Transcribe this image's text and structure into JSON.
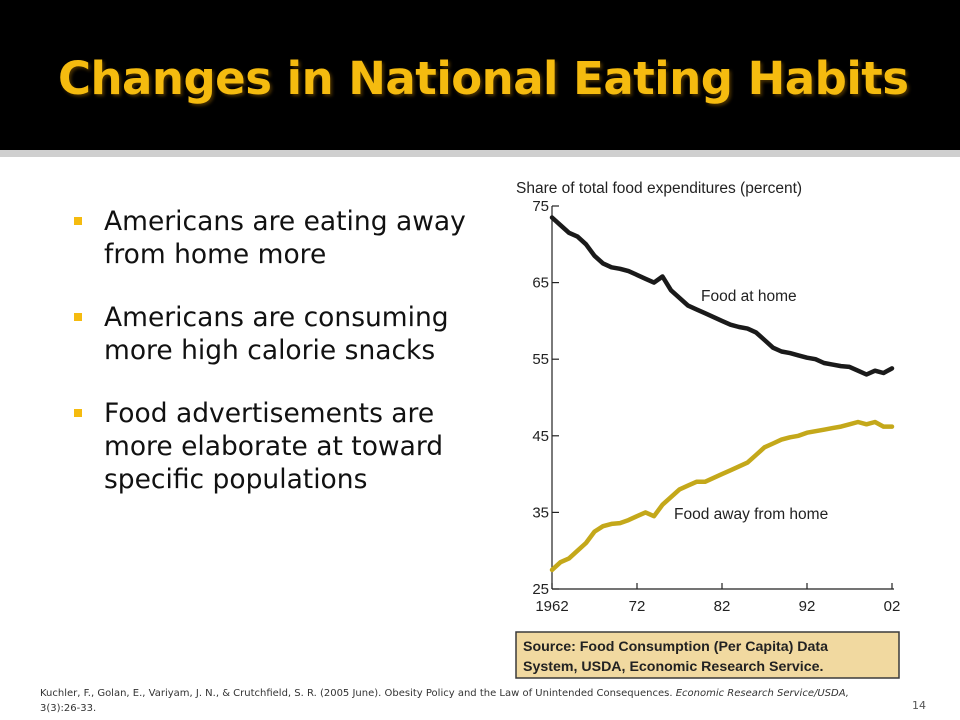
{
  "slide": {
    "title": "Changes in National Eating Habits",
    "bullets": [
      "Americans are eating away from home more",
      "Americans are consuming more high calorie snacks",
      "Food advertisements are more elaborate at toward specific populations"
    ],
    "citation_main": "Kuchler, F., Golan, E., Variyam, J. N., & Crutchfield, S. R. (2005 June). Obesity Policy and the Law of Unintended Consequences. ",
    "citation_journal": "Economic Research Service/USDA,",
    "citation_tail": " 3(3):26-33.",
    "page_number": "14"
  },
  "colors": {
    "title": "#f5bb0f",
    "bullet_marker": "#f5bb0f",
    "food_at_home": "#1a1a1a",
    "food_away": "#c4a81a",
    "source_fill": "#f1d9a0",
    "source_border": "#3a3a3a"
  },
  "chart_data": {
    "type": "line",
    "title": "Share of total food expenditures (percent)",
    "xlabel": "",
    "ylabel": "",
    "xlim": [
      1962,
      2002
    ],
    "ylim": [
      25,
      75
    ],
    "x_ticks": [
      1962,
      1972,
      1982,
      1992,
      2002
    ],
    "x_tick_labels": [
      "1962",
      "72",
      "82",
      "92",
      "02"
    ],
    "y_ticks": [
      25,
      35,
      45,
      55,
      65,
      75
    ],
    "y_tick_labels": [
      "25",
      "35",
      "45",
      "55",
      "65",
      "75"
    ],
    "grid": false,
    "x": [
      1962,
      1963,
      1964,
      1965,
      1966,
      1967,
      1968,
      1969,
      1970,
      1971,
      1972,
      1973,
      1974,
      1975,
      1976,
      1977,
      1978,
      1979,
      1980,
      1981,
      1982,
      1983,
      1984,
      1985,
      1986,
      1987,
      1988,
      1989,
      1990,
      1991,
      1992,
      1993,
      1994,
      1995,
      1996,
      1997,
      1998,
      1999,
      2000,
      2001,
      2002
    ],
    "series": [
      {
        "name": "Food at home",
        "values": [
          73.5,
          72.5,
          71.5,
          71,
          70,
          68.5,
          67.5,
          67,
          66.8,
          66.5,
          66,
          65.5,
          65,
          65.8,
          64,
          63,
          62,
          61.5,
          61,
          60.5,
          60,
          59.5,
          59.2,
          59,
          58.5,
          57.5,
          56.5,
          56,
          55.8,
          55.5,
          55.2,
          55,
          54.5,
          54.3,
          54.1,
          54,
          53.5,
          53,
          53.5,
          53.2,
          53.8
        ]
      },
      {
        "name": "Food away from home",
        "values": [
          27.5,
          28.5,
          29,
          30,
          31,
          32.5,
          33.2,
          33.5,
          33.6,
          34,
          34.5,
          35,
          34.5,
          36,
          37,
          38,
          38.5,
          39,
          39,
          39.5,
          40,
          40.5,
          41,
          41.5,
          42.5,
          43.5,
          44,
          44.5,
          44.8,
          45,
          45.4,
          45.6,
          45.8,
          46,
          46.2,
          46.5,
          46.8,
          46.5,
          46.8,
          46.2,
          46.2
        ]
      }
    ],
    "annotations": [
      "Food at home",
      "Food away from home"
    ],
    "source": "Source: Food Consumption (Per Capita) Data System, USDA, Economic Research Service."
  }
}
